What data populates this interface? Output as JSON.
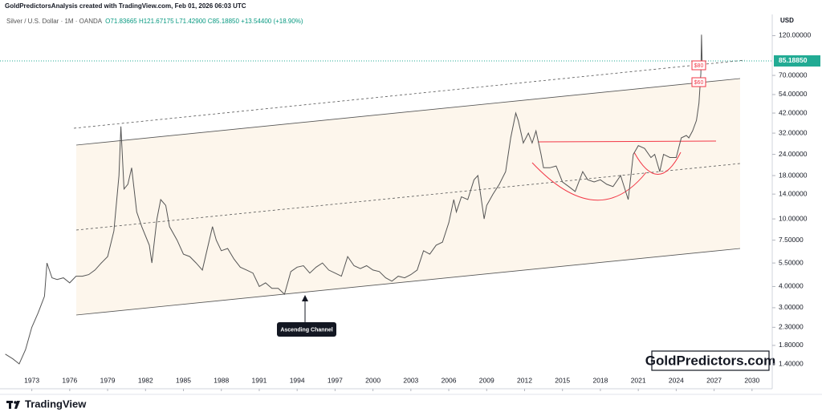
{
  "header": {
    "credit": "GoldPredictorsAnalysis created with TradingView.com, Feb 01, 2026 06:03 UTC",
    "symbol": "Silver / U.S. Dollar · 1M · OANDA",
    "ohlc": "O71.83665 H121.67175 L71.42900 C85.18850 +13.54400 (+18.90%)"
  },
  "chart_data": {
    "type": "line",
    "axis_unit": "USD",
    "log_scale": true,
    "grid": false,
    "color": "#555555",
    "annotations": [
      "Ascending Channel",
      "$80",
      "$60"
    ],
    "watermark": "GoldPredictors.com",
    "brand": "TradingView",
    "price_tag": {
      "value": 85.1885,
      "label": "85.18850"
    },
    "price_tag_color": "#22ab94",
    "xlim": [
      1970.8,
      2031.6
    ],
    "xticks": [
      1973,
      1976,
      1979,
      1982,
      1985,
      1988,
      1991,
      1994,
      1997,
      2000,
      2003,
      2006,
      2009,
      2012,
      2015,
      2018,
      2021,
      2024,
      2027,
      2030
    ],
    "ylim": [
      1,
      160
    ],
    "yticks": [
      {
        "value": 120,
        "label": "120.00000"
      },
      {
        "value": 70,
        "label": "70.00000"
      },
      {
        "value": 54,
        "label": "54.00000"
      },
      {
        "value": 42,
        "label": "42.00000"
      },
      {
        "value": 32,
        "label": "32.00000"
      },
      {
        "value": 24,
        "label": "24.00000"
      },
      {
        "value": 18,
        "label": "18.00000"
      },
      {
        "value": 14,
        "label": "14.00000"
      },
      {
        "value": 10,
        "label": "10.00000"
      },
      {
        "value": 7.5,
        "label": "7.50000"
      },
      {
        "value": 5.5,
        "label": "5.50000"
      },
      {
        "value": 4,
        "label": "4.00000"
      },
      {
        "value": 3,
        "label": "3.00000"
      },
      {
        "value": 2.3,
        "label": "2.30000"
      },
      {
        "value": 1.8,
        "label": "1.80000"
      },
      {
        "value": 1.4,
        "label": "1.40000"
      }
    ],
    "x": [
      1970.9,
      1971.5,
      1972,
      1972.5,
      1973,
      1973.5,
      1974,
      1974.2,
      1974.6,
      1975,
      1975.5,
      1976,
      1976.5,
      1977,
      1977.5,
      1978,
      1978.5,
      1979,
      1979.5,
      1979.9,
      1980.05,
      1980.3,
      1980.6,
      1980.9,
      1981.3,
      1981.7,
      1982.3,
      1982.5,
      1982.9,
      1983.2,
      1983.6,
      1983.9,
      1984.5,
      1985,
      1985.5,
      1986,
      1986.5,
      1987.3,
      1987.6,
      1988,
      1988.5,
      1989,
      1989.5,
      1990,
      1990.5,
      1991,
      1991.5,
      1992,
      1992.5,
      1993,
      1993.5,
      1994,
      1994.5,
      1995,
      1995.5,
      1996,
      1996.5,
      1997,
      1997.5,
      1998,
      1998.5,
      1999,
      1999.5,
      2000,
      2000.5,
      2001,
      2001.5,
      2002,
      2002.5,
      2003,
      2003.5,
      2004,
      2004.5,
      2005,
      2005.5,
      2006,
      2006.4,
      2006.6,
      2007,
      2007.5,
      2008,
      2008.3,
      2008.8,
      2009,
      2009.5,
      2010,
      2010.5,
      2010.9,
      2011.3,
      2011.5,
      2011.9,
      2012.3,
      2012.6,
      2012.9,
      2013.3,
      2013.5,
      2014,
      2014.5,
      2015,
      2015.5,
      2016,
      2016.6,
      2017,
      2017.5,
      2018,
      2018.5,
      2019,
      2019.6,
      2020.2,
      2020.6,
      2021,
      2021.5,
      2022,
      2022.3,
      2022.7,
      2023,
      2023.5,
      2024,
      2024.4,
      2024.8,
      2025,
      2025.3,
      2025.6,
      2025.8,
      2025.95,
      2026,
      2026.05
    ],
    "values": [
      1.6,
      1.5,
      1.4,
      1.7,
      2.3,
      2.8,
      3.5,
      5.5,
      4.5,
      4.4,
      4.5,
      4.2,
      4.6,
      4.6,
      4.7,
      5.0,
      5.5,
      6.0,
      8.5,
      18,
      35,
      15,
      16,
      20,
      11,
      9,
      7,
      5.5,
      10,
      13,
      12,
      9,
      7.5,
      6.2,
      6.0,
      5.5,
      5.0,
      9,
      7.5,
      6.5,
      6.7,
      5.8,
      5.2,
      5.0,
      4.8,
      4.0,
      4.2,
      3.9,
      3.9,
      3.6,
      4.9,
      5.2,
      5.3,
      4.8,
      5.2,
      5.5,
      5.0,
      4.8,
      4.6,
      6.0,
      5.3,
      5.1,
      5.3,
      5.0,
      4.9,
      4.5,
      4.3,
      4.6,
      4.5,
      4.7,
      5.0,
      6.5,
      6.2,
      7.0,
      7.3,
      9.5,
      13,
      11,
      13.5,
      13,
      17,
      18,
      10,
      12,
      14,
      16,
      19,
      30,
      42,
      38,
      28,
      32,
      28,
      33,
      24,
      20,
      20,
      20.5,
      16.5,
      15.5,
      14.5,
      19,
      17,
      16.5,
      17,
      16,
      15.5,
      18,
      13,
      24,
      27,
      26,
      23,
      24,
      19,
      24,
      23,
      23,
      30,
      31,
      30,
      33,
      38,
      48,
      72,
      121.67175,
      85.1885
    ]
  }
}
